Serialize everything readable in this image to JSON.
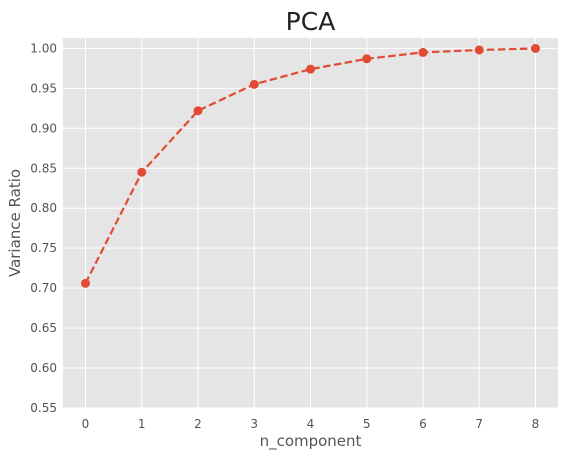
{
  "chart_data": {
    "type": "line",
    "title": "PCA",
    "xlabel": "n_component",
    "ylabel": "Variance Ratio",
    "x": [
      0,
      1,
      2,
      3,
      4,
      5,
      6,
      7,
      8
    ],
    "series": [
      {
        "values": [
          0.706,
          0.845,
          0.922,
          0.955,
          0.974,
          0.987,
          0.995,
          0.998,
          1.0
        ]
      }
    ],
    "xlim": [
      -0.4,
      8.4
    ],
    "ylim": [
      0.55,
      1.013
    ],
    "xticks": [
      "0",
      "1",
      "2",
      "3",
      "4",
      "5",
      "6",
      "7",
      "8"
    ],
    "yticks": [
      "0.55",
      "0.60",
      "0.65",
      "0.70",
      "0.75",
      "0.80",
      "0.85",
      "0.90",
      "0.95",
      "1.00"
    ],
    "grid": true,
    "line_style": "dashed",
    "marker": "circle",
    "colors": {
      "series": "#E24A33",
      "plot_background": "#E5E5E5",
      "grid": "#FFFFFF"
    }
  }
}
